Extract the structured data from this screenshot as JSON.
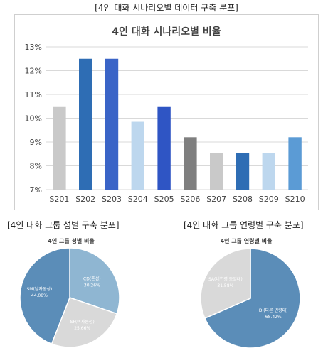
{
  "captions": {
    "top": "[4인 대화 시나리오별 데이터 구축 분포]",
    "gender": "[4인 대화 그룹 성별 구축 분포]",
    "age": "[4인 대화 그룹 연령별 구축 분포]"
  },
  "chart_data": [
    {
      "type": "bar",
      "title": "4인 대화 시나리오별 비율",
      "categories": [
        "S201",
        "S202",
        "S203",
        "S204",
        "S205",
        "S206",
        "S207",
        "S208",
        "S209",
        "S210"
      ],
      "values": [
        10.5,
        12.5,
        12.5,
        9.85,
        10.5,
        9.2,
        8.55,
        8.55,
        8.55,
        9.2
      ],
      "ylim": [
        7,
        13
      ],
      "yticks": [
        "7%",
        "8%",
        "9%",
        "10%",
        "11%",
        "12%",
        "13%"
      ],
      "grid": true,
      "colors": [
        "#c9c9c9",
        "#2e6db4",
        "#3a64c7",
        "#bdd7ee",
        "#2f55c4",
        "#7f7f7f",
        "#c9c9c9",
        "#2e6db4",
        "#bdd7ee",
        "#5b9bd5"
      ]
    },
    {
      "type": "pie",
      "title": "4인 그룹 성별 비율",
      "slices": [
        {
          "label": "CD(혼성)",
          "pct": "30.26%",
          "value": 30.26,
          "color": "#8fb6d2"
        },
        {
          "label": "SF(여자동성)",
          "pct": "25.66%",
          "value": 25.66,
          "color": "#d9d9d9"
        },
        {
          "label": "SM(남자동성)",
          "pct": "44.08%",
          "value": 44.08,
          "color": "#5b8db8"
        }
      ]
    },
    {
      "type": "pie",
      "title": "4인 그룹 연령별 비율",
      "slices": [
        {
          "label": "DI(다른 연령대)",
          "pct": "68.42%",
          "value": 68.42,
          "color": "#5b8db8"
        },
        {
          "label": "SA(비연령 동일대)",
          "pct": "31.58%",
          "value": 31.58,
          "color": "#d9d9d9"
        }
      ]
    }
  ]
}
